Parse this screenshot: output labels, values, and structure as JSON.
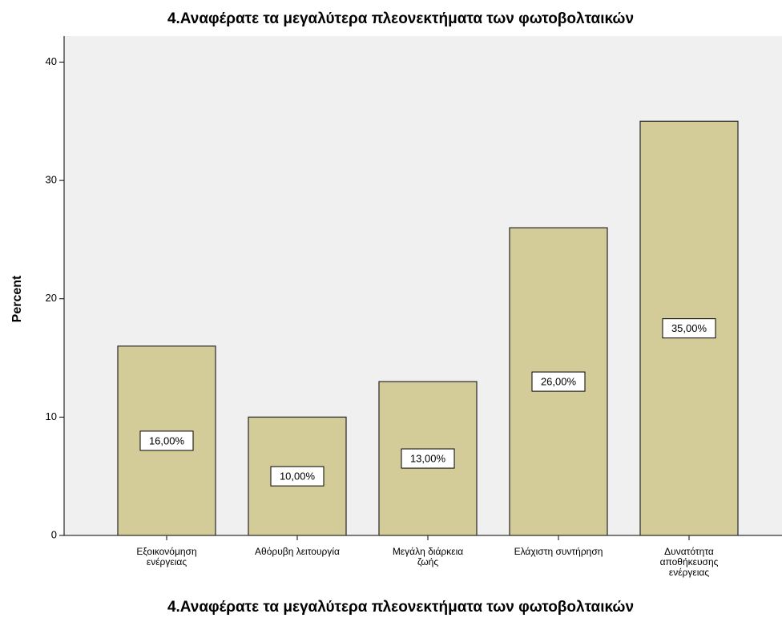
{
  "chart_data": {
    "type": "bar",
    "title": "4.Αναφέρατε τα μεγαλύτερα πλεονεκτήματα των φωτοβολταικών",
    "x_label": "4.Αναφέρατε τα μεγαλύτερα πλεονεκτήματα των φωτοβολταικών",
    "y_label": "Percent",
    "categories": [
      "Εξοικονόμηση\nενέργειας",
      "Αθόρυβη λειτουργία",
      "Μεγάλη διάρκεια\nζωής",
      "Ελάχιστη συντήρηση",
      "Δυνατότητα\nαποθήκευσης\nενέργειας"
    ],
    "values": [
      16,
      10,
      13,
      26,
      35
    ],
    "value_labels": [
      "16,00%",
      "10,00%",
      "13,00%",
      "26,00%",
      "35,00%"
    ],
    "color": "#d4cc98",
    "ylim": [
      0,
      42.2
    ],
    "yticks": [
      0,
      10,
      20,
      30,
      40
    ],
    "grid": false
  }
}
